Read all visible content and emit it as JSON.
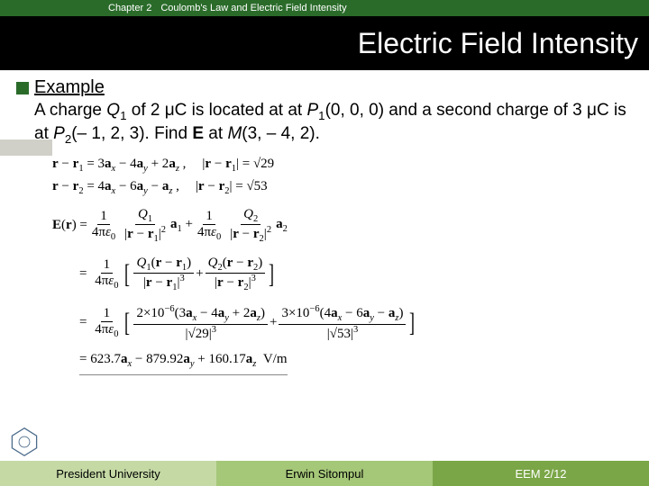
{
  "header": {
    "chapter": "Chapter 2",
    "subtitle": "Coulomb's Law and Electric Field Intensity",
    "title": "Electric Field Intensity"
  },
  "example": {
    "label": "Example",
    "problem_html": "A charge <i>Q</i><sub>1</sub> of 2 μC is located at at <i>P</i><sub>1</sub>(0, 0, 0) and a second charge of 3 μC is at <i>P</i><sub>2</sub>(– 1, 2, 3). Find <b>E</b> at <i>M</i>(3, – 4, 2)."
  },
  "eq": {
    "r1_vec": "<b>r</b> − <b>r</b><sub>1</sub> = 3<b>a</b><sub><i>x</i></sub> − 4<b>a</b><sub><i>y</i></sub> + 2<b>a</b><sub><i>z</i></sub> ,",
    "r1_mag": "|<b>r</b> − <b>r</b><sub>1</sub>| = √29",
    "r2_vec": "<b>r</b> − <b>r</b><sub>2</sub> = 4<b>a</b><sub><i>x</i></sub> − 6<b>a</b><sub><i>y</i></sub> − <b>a</b><sub><i>z</i></sub> ,",
    "r2_mag": "|<b>r</b> − <b>r</b><sub>2</sub>| = √53",
    "Er_lhs": "<b>E</b>(<b>r</b>) =",
    "k_num": "1",
    "k_den": "4π<i>ε</i><sub>0</sub>",
    "t1_num": "<i>Q</i><sub>1</sub>",
    "t1_den": "|<b>r</b> − <b>r</b><sub>1</sub>|<sup>2</sup>",
    "t1_a": "<b>a</b><sub>1</sub> +",
    "t2_num": "<i>Q</i><sub>2</sub>",
    "t2_den": "|<b>r</b> − <b>r</b><sub>2</sub>|<sup>2</sup>",
    "t2_a": "<b>a</b><sub>2</sub>",
    "line2_b1_num": "<i>Q</i><sub>1</sub>(<b>r</b> − <b>r</b><sub>1</sub>)",
    "line2_b1_den": "|<b>r</b> − <b>r</b><sub>1</sub>|<sup>3</sup>",
    "plus": "+",
    "line2_b2_num": "<i>Q</i><sub>2</sub>(<b>r</b> − <b>r</b><sub>2</sub>)",
    "line2_b2_den": "|<b>r</b> − <b>r</b><sub>2</sub>|<sup>3</sup>",
    "line3_b1_num": "2×10<sup>−6</sup>(3<b>a</b><sub><i>x</i></sub> − 4<b>a</b><sub><i>y</i></sub> + 2<b>a</b><sub><i>z</i></sub>)",
    "line3_b1_den": "|√29|<sup>3</sup>",
    "line3_b2_num": "3×10<sup>−6</sup>(4<b>a</b><sub><i>x</i></sub> − 6<b>a</b><sub><i>y</i></sub> − <b>a</b><sub><i>z</i></sub>)",
    "line3_b2_den": "|√53|<sup>3</sup>",
    "result": "= 623.7<b>a</b><sub><i>x</i></sub> − 879.92<b>a</b><sub><i>y</i></sub> + 160.17<b>a</b><sub><i>z</i></sub>&nbsp;&nbsp;V/m"
  },
  "footer": {
    "left": "President University",
    "center": "Erwin Sitompul",
    "right": "EEM 2/12"
  },
  "colors": {
    "header_green": "#2a6b2a",
    "footer1": "#c5d9a5",
    "footer2": "#a5c778",
    "footer3": "#7aa647"
  }
}
